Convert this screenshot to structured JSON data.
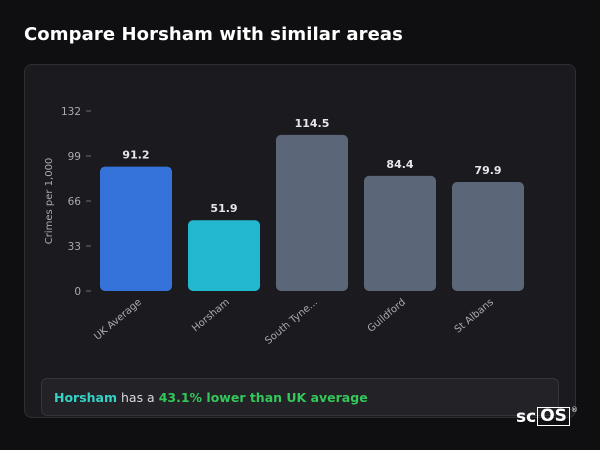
{
  "page": {
    "title": "Compare Horsham with similar areas"
  },
  "summary": {
    "area": "Horsham",
    "middle": " has a ",
    "highlight": "43.1% lower than UK average"
  },
  "logo": {
    "text_plain": "sc",
    "text_boxed": "OS",
    "mark": "®"
  },
  "colors": {
    "uk_average": "#3573db",
    "highlighted_area": "#22b8cf",
    "other_areas": "#5b6679",
    "summary_area_text": "#35d3c6",
    "summary_highlight_text": "#34c759"
  },
  "chart_data": {
    "type": "bar",
    "categories": [
      "UK Average",
      "Horsham",
      "South Tyne...",
      "Guildford",
      "St Albans"
    ],
    "values": [
      91.2,
      51.9,
      114.5,
      84.4,
      79.9
    ],
    "value_labels": [
      "91.2",
      "51.9",
      "114.5",
      "84.4",
      "79.9"
    ],
    "bar_colors": [
      "#3573db",
      "#22b8cf",
      "#5b6679",
      "#5b6679",
      "#5b6679"
    ],
    "ylabel": "Crimes per 1,000",
    "xlabel": "",
    "ylim": [
      0,
      132
    ],
    "yticks": [
      0,
      33,
      66,
      99,
      132
    ],
    "grid": false,
    "legend": false
  }
}
